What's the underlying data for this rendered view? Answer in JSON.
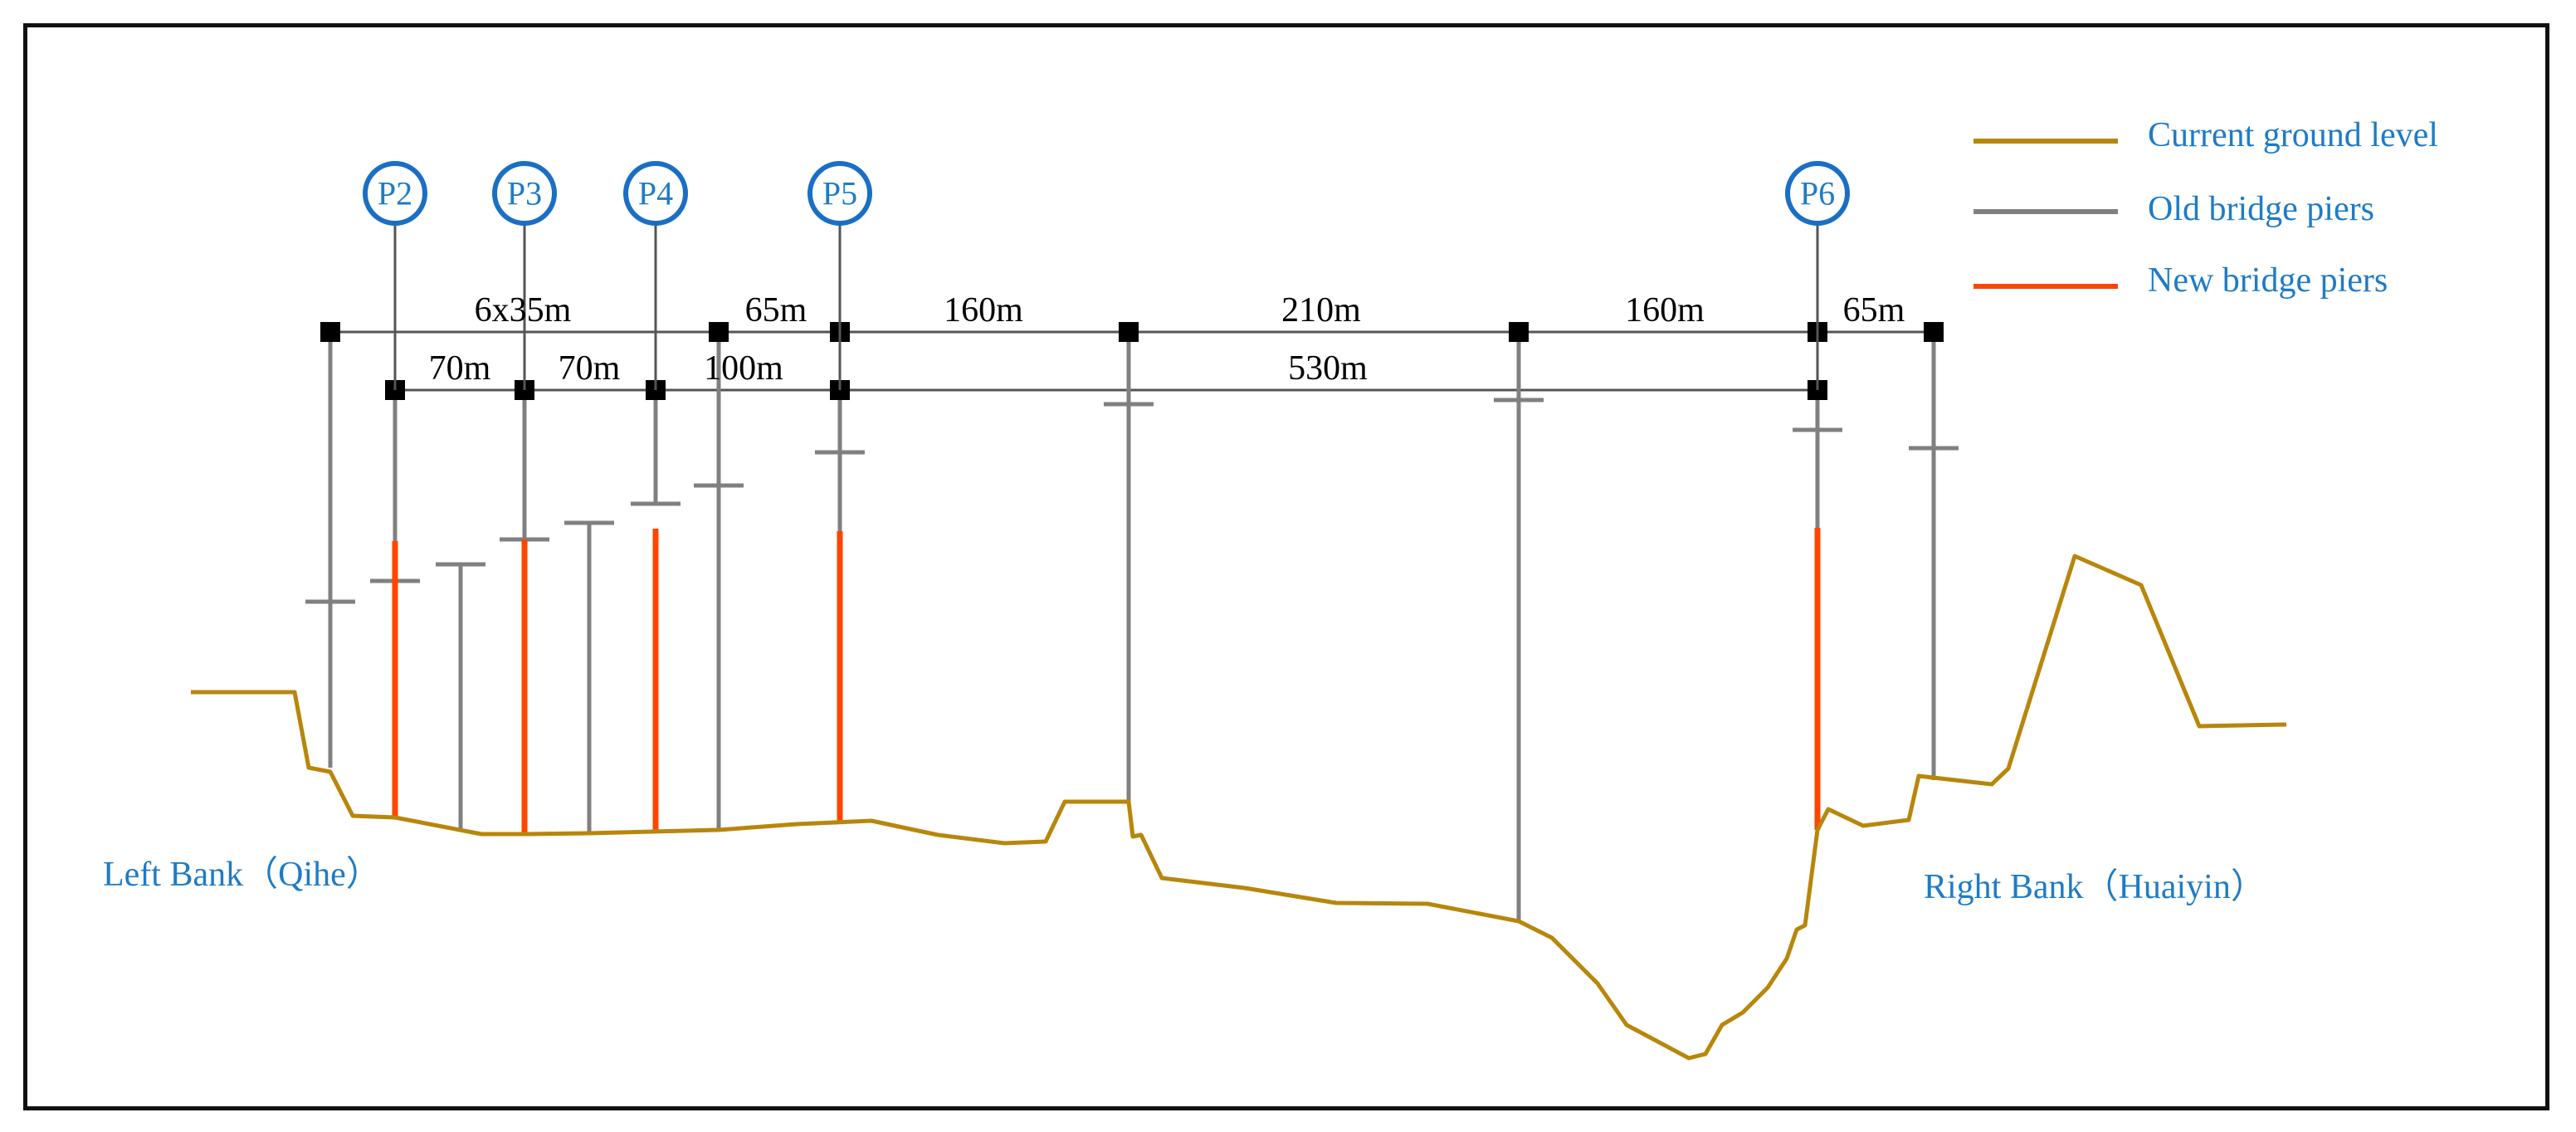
{
  "legend": {
    "ground_label": "Current ground level",
    "old_label": "Old bridge piers",
    "new_label": "New bridge piers"
  },
  "colors": {
    "ground": "#B8860B",
    "old_pier": "#808080",
    "new_pier": "#FF4500",
    "label_blue": "#1E7BC6",
    "pier_circle": "#1A6FC4",
    "text": "#000000",
    "frame": "#111111"
  },
  "pier_labels": [
    "P2",
    "P3",
    "P4",
    "P5",
    "P6"
  ],
  "spans_top": [
    "6x35m",
    "65m",
    "160m",
    "210m",
    "160m",
    "65m"
  ],
  "spans_bottom": [
    "70m",
    "70m",
    "100m",
    "530m"
  ],
  "banks": {
    "left": "Left Bank（Qihe）",
    "right": "Right Bank（Huaiyin）"
  }
}
